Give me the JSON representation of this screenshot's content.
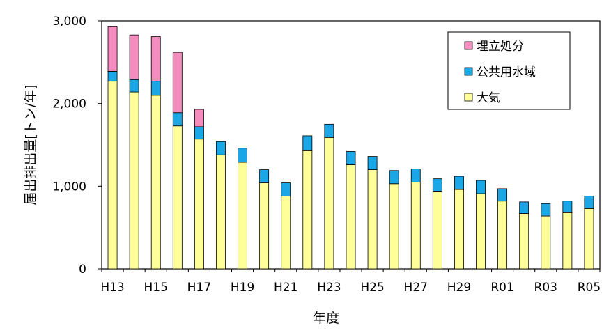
{
  "chart_data": {
    "type": "bar",
    "stacked": true,
    "categories": [
      "H13",
      "H14",
      "H15",
      "H16",
      "H17",
      "H18",
      "H19",
      "H20",
      "H21",
      "H22",
      "H23",
      "H24",
      "H25",
      "H26",
      "H27",
      "H28",
      "H29",
      "H30",
      "R01",
      "R02",
      "R03",
      "R04",
      "R05"
    ],
    "x_tick_labels": [
      "H13",
      "",
      "H15",
      "",
      "H17",
      "",
      "H19",
      "",
      "H21",
      "",
      "H23",
      "",
      "H25",
      "",
      "H27",
      "",
      "H29",
      "",
      "R01",
      "",
      "R03",
      "",
      "R05"
    ],
    "series": [
      {
        "name": "大気",
        "color": "#ffff99",
        "values": [
          2270,
          2140,
          2100,
          1730,
          1570,
          1380,
          1290,
          1040,
          880,
          1430,
          1590,
          1260,
          1200,
          1030,
          1050,
          940,
          960,
          910,
          820,
          670,
          640,
          680,
          730
        ]
      },
      {
        "name": "公共用水域",
        "color": "#1ba7e6",
        "values": [
          120,
          150,
          170,
          160,
          150,
          160,
          170,
          160,
          160,
          180,
          160,
          160,
          160,
          160,
          160,
          150,
          160,
          160,
          150,
          140,
          150,
          140,
          150
        ]
      },
      {
        "name": "埋立処分",
        "color": "#f58cbe",
        "values": [
          540,
          540,
          540,
          730,
          210,
          0,
          0,
          0,
          0,
          0,
          0,
          0,
          0,
          0,
          0,
          0,
          0,
          0,
          0,
          0,
          0,
          0,
          0
        ]
      }
    ],
    "xlabel": "年度",
    "ylabel": "届出排出量[トン/年]",
    "ylim": [
      0,
      3000
    ],
    "y_ticks": [
      0,
      1000,
      2000,
      3000
    ],
    "y_tick_labels": [
      "0",
      "1,000",
      "2,000",
      "3,000"
    ],
    "grid": false,
    "legend_position": "top-right",
    "legend_order": [
      "埋立処分",
      "公共用水域",
      "大気"
    ]
  }
}
